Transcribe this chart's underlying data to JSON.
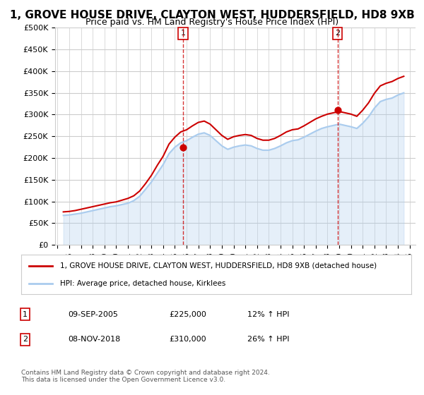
{
  "title": "1, GROVE HOUSE DRIVE, CLAYTON WEST, HUDDERSFIELD, HD8 9XB",
  "subtitle": "Price paid vs. HM Land Registry's House Price Index (HPI)",
  "title_fontsize": 11,
  "subtitle_fontsize": 9,
  "ylim": [
    0,
    500000
  ],
  "yticks": [
    0,
    50000,
    100000,
    150000,
    200000,
    250000,
    300000,
    350000,
    400000,
    450000,
    500000
  ],
  "ytick_labels": [
    "£0",
    "£50K",
    "£100K",
    "£150K",
    "£200K",
    "£250K",
    "£300K",
    "£350K",
    "£400K",
    "£450K",
    "£500K"
  ],
  "xlabel": "",
  "ylabel": "",
  "background_color": "#ffffff",
  "grid_color": "#cccccc",
  "property_color": "#cc0000",
  "hpi_color": "#aaccee",
  "annotation_color": "#cc0000",
  "sale1_year": 2005.69,
  "sale1_price": 225000,
  "sale1_label": "1",
  "sale1_date": "09-SEP-2005",
  "sale1_pct": "12%",
  "sale2_year": 2018.85,
  "sale2_price": 310000,
  "sale2_label": "2",
  "sale2_date": "08-NOV-2018",
  "sale2_pct": "26%",
  "legend_property": "1, GROVE HOUSE DRIVE, CLAYTON WEST, HUDDERSFIELD, HD8 9XB (detached house)",
  "legend_hpi": "HPI: Average price, detached house, Kirklees",
  "footnote": "Contains HM Land Registry data © Crown copyright and database right 2024.\nThis data is licensed under the Open Government Licence v3.0.",
  "hpi_data": {
    "years": [
      1995.5,
      1996.0,
      1996.5,
      1997.0,
      1997.5,
      1998.0,
      1998.5,
      1999.0,
      1999.5,
      2000.0,
      2000.5,
      2001.0,
      2001.5,
      2002.0,
      2002.5,
      2003.0,
      2003.5,
      2004.0,
      2004.5,
      2005.0,
      2005.5,
      2006.0,
      2006.5,
      2007.0,
      2007.5,
      2008.0,
      2008.5,
      2009.0,
      2009.5,
      2010.0,
      2010.5,
      2011.0,
      2011.5,
      2012.0,
      2012.5,
      2013.0,
      2013.5,
      2014.0,
      2014.5,
      2015.0,
      2015.5,
      2016.0,
      2016.5,
      2017.0,
      2017.5,
      2018.0,
      2018.5,
      2019.0,
      2019.5,
      2020.0,
      2020.5,
      2021.0,
      2021.5,
      2022.0,
      2022.5,
      2023.0,
      2023.5,
      2024.0,
      2024.5
    ],
    "values": [
      68000,
      69000,
      71000,
      73000,
      76000,
      79000,
      82000,
      85000,
      88000,
      90000,
      93000,
      96000,
      102000,
      112000,
      128000,
      145000,
      165000,
      185000,
      210000,
      225000,
      235000,
      240000,
      248000,
      255000,
      258000,
      252000,
      240000,
      228000,
      220000,
      225000,
      228000,
      230000,
      228000,
      222000,
      218000,
      218000,
      222000,
      228000,
      235000,
      240000,
      242000,
      248000,
      255000,
      262000,
      268000,
      272000,
      275000,
      278000,
      275000,
      272000,
      268000,
      280000,
      295000,
      315000,
      330000,
      335000,
      338000,
      345000,
      350000
    ]
  },
  "property_data": {
    "years": [
      1995.5,
      1996.0,
      1996.5,
      1997.0,
      1997.5,
      1998.0,
      1998.5,
      1999.0,
      1999.5,
      2000.0,
      2000.5,
      2001.0,
      2001.5,
      2002.0,
      2002.5,
      2003.0,
      2003.5,
      2004.0,
      2004.5,
      2005.0,
      2005.5,
      2006.0,
      2006.5,
      2007.0,
      2007.5,
      2008.0,
      2008.5,
      2009.0,
      2009.5,
      2010.0,
      2010.5,
      2011.0,
      2011.5,
      2012.0,
      2012.5,
      2013.0,
      2013.5,
      2014.0,
      2014.5,
      2015.0,
      2015.5,
      2016.0,
      2016.5,
      2017.0,
      2017.5,
      2018.0,
      2018.5,
      2019.0,
      2019.5,
      2020.0,
      2020.5,
      2021.0,
      2021.5,
      2022.0,
      2022.5,
      2023.0,
      2023.5,
      2024.0,
      2024.5
    ],
    "values": [
      76000,
      77000,
      79000,
      82000,
      85000,
      88000,
      91000,
      94000,
      97000,
      99000,
      103000,
      107000,
      113000,
      124000,
      141000,
      160000,
      183000,
      204000,
      232000,
      248000,
      260000,
      265000,
      274000,
      282000,
      285000,
      278000,
      265000,
      252000,
      243000,
      249000,
      252000,
      254000,
      252000,
      245000,
      241000,
      241000,
      245000,
      252000,
      260000,
      265000,
      267000,
      274000,
      282000,
      290000,
      296000,
      301000,
      304000,
      307000,
      304000,
      301000,
      296000,
      310000,
      327000,
      349000,
      366000,
      372000,
      376000,
      383000,
      388000
    ]
  }
}
